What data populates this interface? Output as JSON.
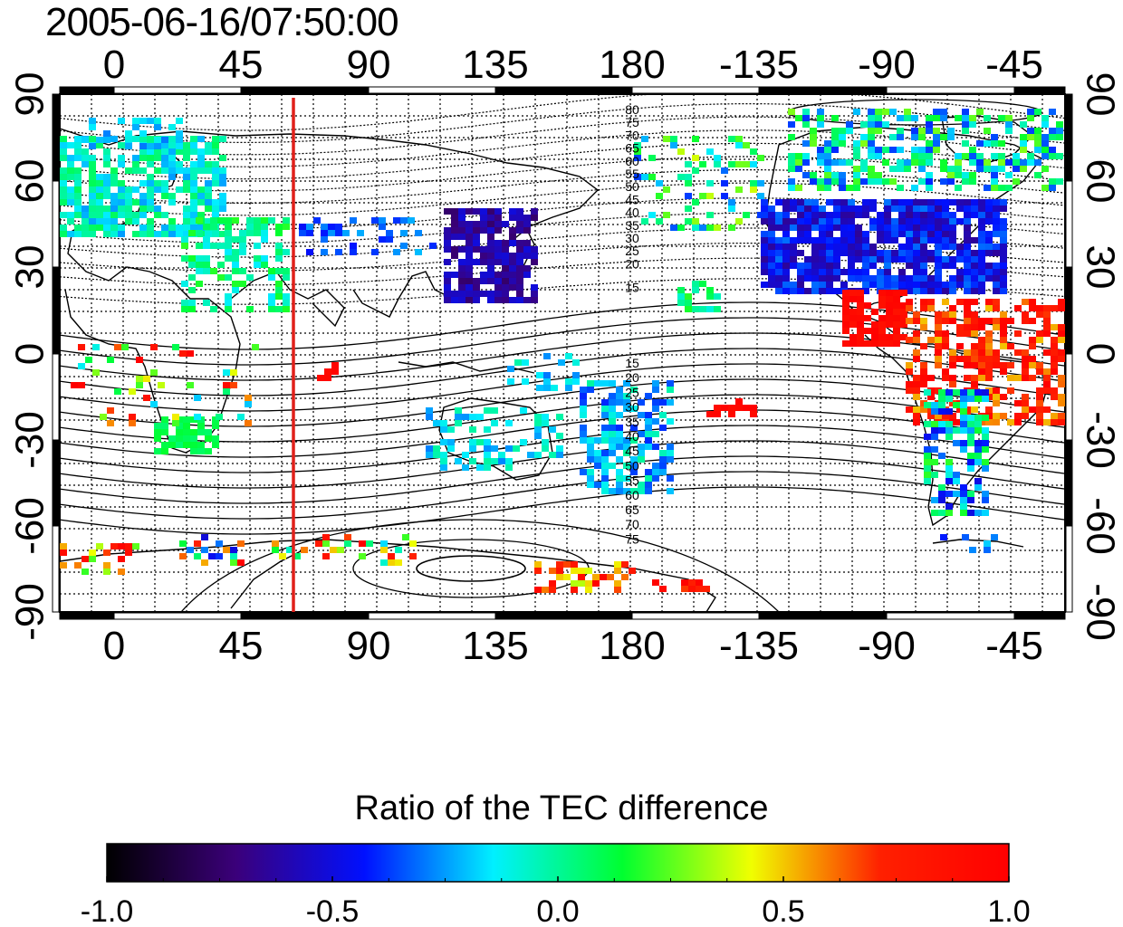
{
  "title": "2005-06-16/07:50:00",
  "map": {
    "lon_ticks_top": [
      "0",
      "45",
      "90",
      "135",
      "180",
      "-135",
      "-90",
      "-45"
    ],
    "lon_ticks_bottom": [
      "0",
      "45",
      "90",
      "135",
      "180",
      "-135",
      "-90",
      "-45"
    ],
    "lat_ticks_left": [
      "90",
      "60",
      "30",
      "0",
      "-30",
      "-60",
      "-90"
    ],
    "lat_ticks_right": [
      "90",
      "60",
      "30",
      "0",
      "-30",
      "-60",
      "-90"
    ],
    "contour_labels_north": [
      "80",
      "75",
      "70",
      "65",
      "60",
      "55",
      "50",
      "45",
      "40",
      "35",
      "30",
      "25",
      "20",
      "15"
    ],
    "contour_labels_south": [
      "15",
      "20",
      "25",
      "30",
      "35",
      "40",
      "45",
      "50",
      "55",
      "60",
      "65",
      "70",
      "75"
    ],
    "line_color": "#e0201a"
  },
  "colorbar": {
    "title": "Ratio of the TEC difference",
    "ticks": [
      "-1.0",
      "-0.5",
      "0.0",
      "0.5",
      "1.0"
    ],
    "colors": [
      "#000000",
      "#3b007a",
      "#0010ff",
      "#00f0ff",
      "#00ff30",
      "#f0ff00",
      "#ff2000",
      "#ff0000"
    ]
  }
}
